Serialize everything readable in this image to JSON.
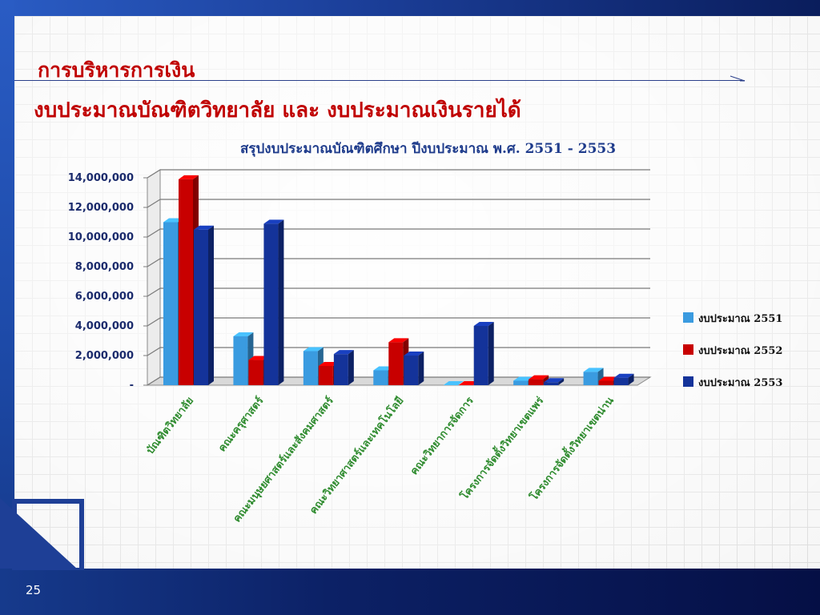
{
  "slide": {
    "section_title": "การบริหารการเงิน",
    "subtitle": "งบประมาณบัณฑิตวิทยาลัย และ งบประมาณเงินรายได้",
    "page_number": "25"
  },
  "chart_data": {
    "type": "bar",
    "title": "สรุปงบประมาณบัณฑิตศึกษา ปีงบประมาณ พ.ศ. 2551 - 2553",
    "categories": [
      "บัณฑิตวิทยาลัย",
      "คณะครุศาสตร์",
      "คณะมนุษยศาสตร์และสังคมศาสตร์",
      "คณะวิทยาศาสตร์และเทคโนโลยี",
      "คณะวิทยาการจัดการ",
      "โครงการจัดตั้งวิทยาเขตแพร่",
      "โครงการจัดตั้งวิทยาเขตน่าน"
    ],
    "series": [
      {
        "name": "งบประมาณ 2551",
        "color": "#3a9be0",
        "values": [
          11000000,
          3300000,
          2300000,
          1000000,
          0,
          300000,
          900000
        ]
      },
      {
        "name": "งบประมาณ 2552",
        "color": "#c80000",
        "values": [
          13900000,
          1700000,
          1300000,
          2900000,
          0,
          400000,
          300000
        ]
      },
      {
        "name": "งบประมาณ 2553",
        "color": "#14339a",
        "values": [
          10500000,
          10900000,
          2100000,
          2000000,
          4000000,
          200000,
          500000
        ]
      }
    ],
    "y_ticks": [
      "-",
      "2,000,000",
      "4,000,000",
      "6,000,000",
      "8,000,000",
      "10,000,000",
      "12,000,000",
      "14,000,000"
    ],
    "ylim": [
      0,
      14000000
    ],
    "legend_position": "right",
    "grid": true,
    "category_label_color": "#2e8b2e"
  }
}
